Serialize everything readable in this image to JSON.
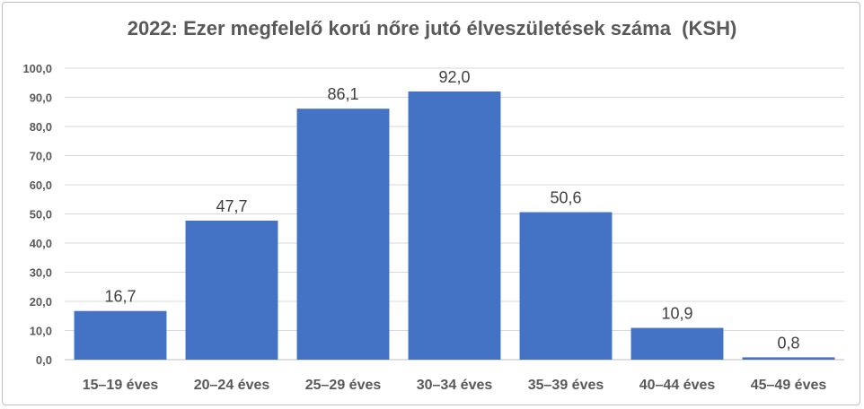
{
  "chart_data": {
    "type": "bar",
    "title": "2022: Ezer megfelelő korú nőre jutó élveszületések száma  (KSH)",
    "categories": [
      "15–19 éves",
      "20–24 éves",
      "25–29 éves",
      "30–34 éves",
      "35–39 éves",
      "40–44 éves",
      "45–49 éves"
    ],
    "values": [
      16.7,
      47.7,
      86.1,
      92.0,
      50.6,
      10.9,
      0.8
    ],
    "data_labels": [
      "16,7",
      "47,7",
      "86,1",
      "92,0",
      "50,6",
      "10,9",
      "0,8"
    ],
    "ylim": [
      0,
      100
    ],
    "yticks": [
      "0,0",
      "10,0",
      "20,0",
      "30,0",
      "40,0",
      "50,0",
      "60,0",
      "70,0",
      "80,0",
      "90,0",
      "100,0"
    ],
    "xlabel": "",
    "ylabel": "",
    "grid": true,
    "bar_color": "#4472C4"
  }
}
